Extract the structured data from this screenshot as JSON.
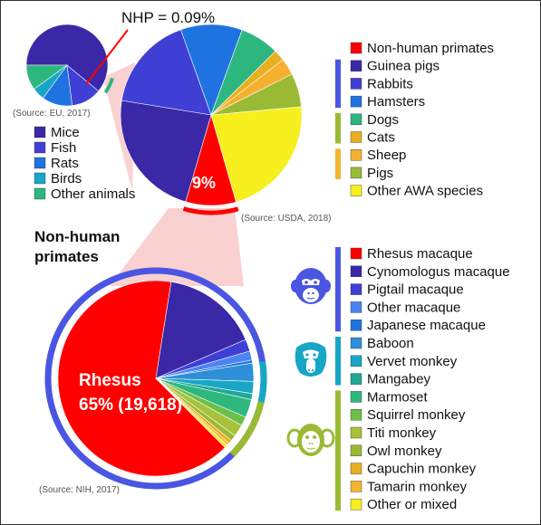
{
  "colors": {
    "red": "#ff0000",
    "darkblue": "#3a28a6",
    "indigo": "#3f3fd6",
    "blue": "#1f73e0",
    "cornflower": "#4a84f0",
    "steel": "#2e8fd8",
    "cyan": "#17a6c6",
    "teal": "#1ea895",
    "sea": "#2db77f",
    "green": "#6cc04a",
    "olive": "#9aba34",
    "lime": "#a8c23a",
    "gold": "#e8b020",
    "orange": "#f5b02e",
    "amber": "#f2b52f",
    "yellow": "#f7ef1e",
    "pinkband": "#f8c9c9",
    "ring": "#4a56e2",
    "annotation": "#ff0000"
  },
  "annotation": {
    "nhp_label": "NHP = 0.09%"
  },
  "chart_data": [
    {
      "type": "pie",
      "name": "eu",
      "source": "(Source: EU, 2017)",
      "slices": [
        {
          "label": "Mice",
          "value": 61,
          "color": "#3a28a6"
        },
        {
          "label": "Fish",
          "value": 12,
          "color": "#3f3fd6"
        },
        {
          "label": "Rats",
          "value": 12,
          "color": "#1f73e0"
        },
        {
          "label": "Birds",
          "value": 5,
          "color": "#17a6c6"
        },
        {
          "label": "Other animals",
          "value": 10,
          "color": "#2db77f"
        }
      ]
    },
    {
      "type": "pie",
      "name": "usda",
      "source": "(Source: USDA, 2018)",
      "highlight_label": "9%",
      "slices": [
        {
          "label": "Non-human primates",
          "value": 9,
          "color": "#ff0000"
        },
        {
          "label": "Guinea pigs",
          "value": 23,
          "color": "#3a28a6"
        },
        {
          "label": "Rabbits",
          "value": 17,
          "color": "#3f3fd6"
        },
        {
          "label": "Hamsters",
          "value": 11,
          "color": "#1f73e0"
        },
        {
          "label": "Dogs",
          "value": 7,
          "color": "#2db77f"
        },
        {
          "label": "Cats",
          "value": 2,
          "color": "#e8b020"
        },
        {
          "label": "Sheep",
          "value": 3,
          "color": "#f5b02e"
        },
        {
          "label": "Pigs",
          "value": 6,
          "color": "#9aba34"
        },
        {
          "label": "Other AWA species",
          "value": 22,
          "color": "#f7ef1e"
        }
      ]
    },
    {
      "type": "pie",
      "name": "nih",
      "source": "(Source: NIH, 2017)",
      "title": "Non-human primates",
      "highlight_label_line1": "Rhesus",
      "highlight_label_line2": "65% (19,618)",
      "slices": [
        {
          "label": "Rhesus macaque",
          "value": 65,
          "color": "#ff0000"
        },
        {
          "label": "Cynomologus macaque",
          "value": 16,
          "color": "#3a28a6"
        },
        {
          "label": "Pigtail macaque",
          "value": 2,
          "color": "#3f3fd6"
        },
        {
          "label": "Other macaque",
          "value": 1.5,
          "color": "#4a84f0"
        },
        {
          "label": "Japanese macaque",
          "value": 0.5,
          "color": "#1f73e0"
        },
        {
          "label": "Baboon",
          "value": 3,
          "color": "#2e8fd8"
        },
        {
          "label": "Vervet monkey",
          "value": 2,
          "color": "#17a6c6"
        },
        {
          "label": "Mangabey",
          "value": 1,
          "color": "#1ea895"
        },
        {
          "label": "Marmoset",
          "value": 3,
          "color": "#2db77f"
        },
        {
          "label": "Squirrel monkey",
          "value": 1.5,
          "color": "#6cc04a"
        },
        {
          "label": "Titi monkey",
          "value": 2,
          "color": "#a8c23a"
        },
        {
          "label": "Owl monkey",
          "value": 1,
          "color": "#9aba34"
        },
        {
          "label": "Capuchin monkey",
          "value": 0.6,
          "color": "#e8b020"
        },
        {
          "label": "Tamarin monkey",
          "value": 0.4,
          "color": "#f2b52f"
        },
        {
          "label": "Other or mixed",
          "value": 0.5,
          "color": "#f7ef1e"
        }
      ],
      "groups": [
        {
          "icon": "macaque-face-icon",
          "color": "#4a56e2",
          "from": 0,
          "to": 4
        },
        {
          "icon": "baboon-face-icon",
          "color": "#17a6c6",
          "from": 5,
          "to": 7
        },
        {
          "icon": "new-world-monkey-face-icon",
          "color": "#9aba34",
          "from": 8,
          "to": 14
        }
      ]
    }
  ],
  "usda_groups": [
    {
      "color": "#4a56e2",
      "from": 1,
      "to": 3
    },
    {
      "color": "#9aba34",
      "from": 4,
      "to": 5
    },
    {
      "color": "#f2b52f",
      "from": 6,
      "to": 7
    }
  ]
}
